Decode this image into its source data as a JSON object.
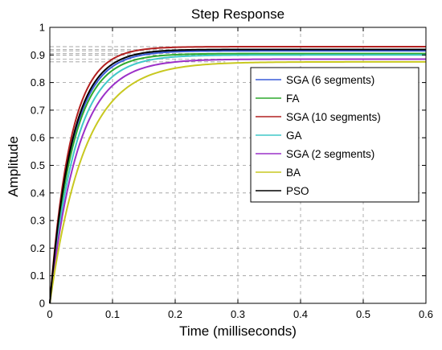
{
  "chart_data": {
    "type": "line",
    "title": "Step Response",
    "xlabel": "Time (milliseconds)",
    "ylabel": "Amplitude",
    "xlim": [
      0,
      0.6
    ],
    "ylim": [
      0,
      1
    ],
    "xticks": [
      "0",
      "0.1",
      "0.2",
      "0.3",
      "0.4",
      "0.5",
      "0.6"
    ],
    "yticks": [
      "0",
      "0.1",
      "0.2",
      "0.3",
      "0.4",
      "0.5",
      "0.6",
      "0.7",
      "0.8",
      "0.9",
      "1"
    ],
    "grid": true,
    "legend_position": "right",
    "series": [
      {
        "name": "SGA (6 segments)",
        "color": "#3a5bd9",
        "final_value": 0.915,
        "time_constant_ms": 0.036
      },
      {
        "name": "FA",
        "color": "#2eaa2e",
        "final_value": 0.905,
        "time_constant_ms": 0.037
      },
      {
        "name": "SGA (10 segments)",
        "color": "#b22020",
        "final_value": 0.93,
        "time_constant_ms": 0.033
      },
      {
        "name": "GA",
        "color": "#40c8c8",
        "final_value": 0.9,
        "time_constant_ms": 0.041
      },
      {
        "name": "SGA (2 segments)",
        "color": "#9b30c8",
        "final_value": 0.885,
        "time_constant_ms": 0.045
      },
      {
        "name": "BA",
        "color": "#c8c820",
        "final_value": 0.875,
        "time_constant_ms": 0.055
      },
      {
        "name": "PSO",
        "color": "#000000",
        "final_value": 0.92,
        "time_constant_ms": 0.035
      }
    ]
  }
}
